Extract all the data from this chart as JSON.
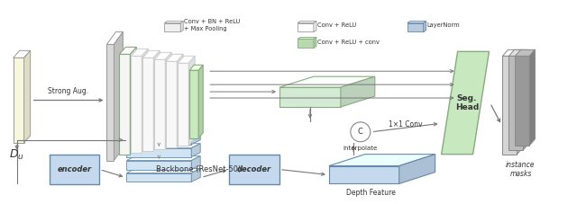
{
  "bg_color": "#ffffff",
  "backbone_label": "Backbone (ResNet-50)",
  "seg_head_label": "Seg.\nHead",
  "encoder_label": "encoder",
  "decoder_label": "decoder",
  "depth_feature_label": "Depth Feature",
  "instance_masks_label": "instance\nmasks",
  "strong_aug_label": "Strong Aug.",
  "interpolate_label": "interpolate",
  "conv_label": "1×1 Conv",
  "du_label": "$D_u$",
  "concat_label": "C",
  "input_color": "#f7f7dd",
  "backbone_plate_color": "#e8e8e8",
  "backbone_conv_color": "#f5f5f5",
  "backbone_green_color": "#c8e8c0",
  "feature_map_color": "#d4ead4",
  "depth_feat_color": "#c5d9ee",
  "seg_head_color": "#c8e8c0",
  "encoder_color": "#c5d9ee",
  "decoder_color": "#c5d9ee",
  "fp_color": "#d0e4f4",
  "mask_colors": [
    "#999999",
    "#bbbbbb",
    "#d5d5d5"
  ],
  "legend_gray_color": "#f0f0f0",
  "legend_white_color": "#ffffff",
  "legend_blue_color": "#b8ccdd",
  "legend_green_color": "#b8d8b0",
  "arrow_color": "#777777",
  "edge_color": "#999999",
  "green_edge_color": "#88aa80",
  "blue_edge_color": "#6688aa"
}
